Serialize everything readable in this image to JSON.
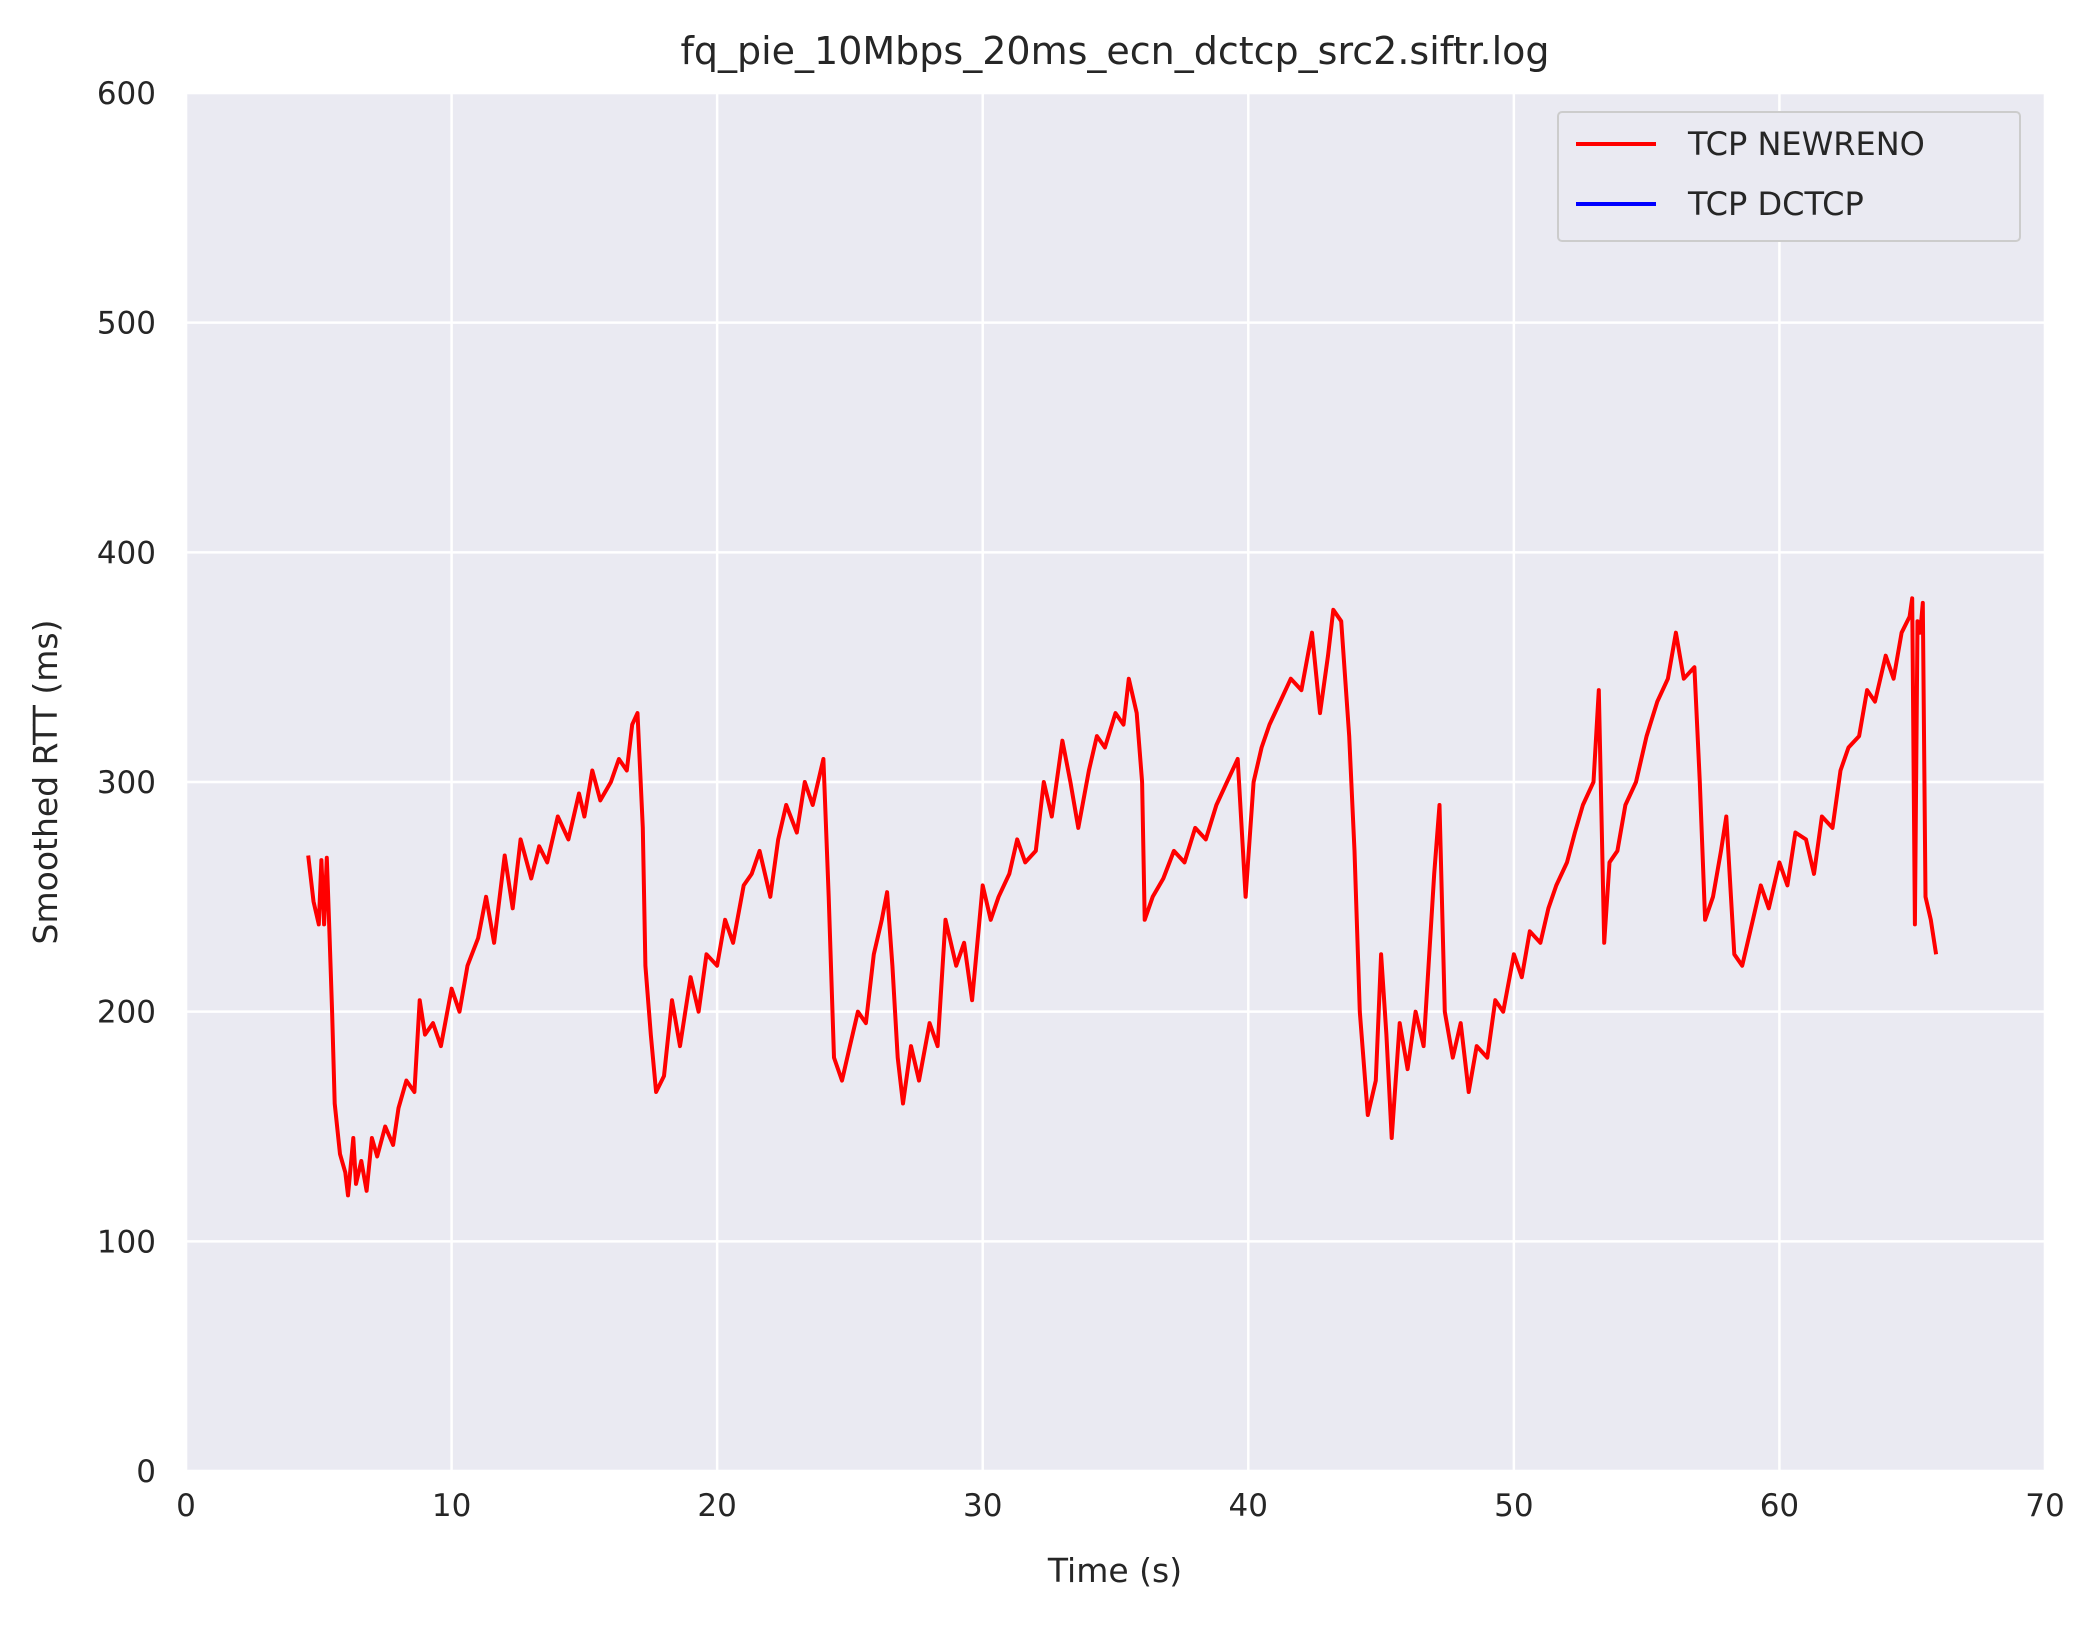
{
  "chart_data": {
    "type": "line",
    "title": "fq_pie_10Mbps_20ms_ecn_dctcp_src2.siftr.log",
    "xlabel": "Time (s)",
    "ylabel": "Smoothed RTT (ms)",
    "xlim": [
      0,
      70
    ],
    "ylim": [
      0,
      600
    ],
    "xticks": [
      0,
      10,
      20,
      30,
      40,
      50,
      60,
      70
    ],
    "yticks": [
      0,
      100,
      200,
      300,
      400,
      500,
      600
    ],
    "xtick_labels": [
      "0",
      "10",
      "20",
      "30",
      "40",
      "50",
      "60",
      "70"
    ],
    "ytick_labels": [
      "0",
      "100",
      "200",
      "300",
      "400",
      "500",
      "600"
    ],
    "grid": true,
    "legend_position": "top-right",
    "series": [
      {
        "name": "TCP NEWRENO",
        "color": "#ff0000",
        "points": [
          [
            4.6,
            268
          ],
          [
            4.8,
            248
          ],
          [
            5.0,
            238
          ],
          [
            5.1,
            266
          ],
          [
            5.2,
            238
          ],
          [
            5.3,
            267
          ],
          [
            5.4,
            235
          ],
          [
            5.5,
            200
          ],
          [
            5.6,
            160
          ],
          [
            5.8,
            138
          ],
          [
            6.0,
            130
          ],
          [
            6.1,
            120
          ],
          [
            6.3,
            145
          ],
          [
            6.4,
            125
          ],
          [
            6.6,
            135
          ],
          [
            6.8,
            122
          ],
          [
            7.0,
            145
          ],
          [
            7.2,
            137
          ],
          [
            7.5,
            150
          ],
          [
            7.8,
            142
          ],
          [
            8.0,
            158
          ],
          [
            8.3,
            170
          ],
          [
            8.6,
            165
          ],
          [
            8.8,
            205
          ],
          [
            9.0,
            190
          ],
          [
            9.3,
            195
          ],
          [
            9.6,
            185
          ],
          [
            10.0,
            210
          ],
          [
            10.3,
            200
          ],
          [
            10.6,
            220
          ],
          [
            11.0,
            232
          ],
          [
            11.3,
            250
          ],
          [
            11.6,
            230
          ],
          [
            12.0,
            268
          ],
          [
            12.3,
            245
          ],
          [
            12.6,
            275
          ],
          [
            13.0,
            258
          ],
          [
            13.3,
            272
          ],
          [
            13.6,
            265
          ],
          [
            14.0,
            285
          ],
          [
            14.4,
            275
          ],
          [
            14.8,
            295
          ],
          [
            15.0,
            285
          ],
          [
            15.3,
            305
          ],
          [
            15.6,
            292
          ],
          [
            16.0,
            300
          ],
          [
            16.3,
            310
          ],
          [
            16.6,
            305
          ],
          [
            16.8,
            325
          ],
          [
            17.0,
            330
          ],
          [
            17.2,
            280
          ],
          [
            17.3,
            220
          ],
          [
            17.5,
            190
          ],
          [
            17.7,
            165
          ],
          [
            18.0,
            172
          ],
          [
            18.3,
            205
          ],
          [
            18.6,
            185
          ],
          [
            19.0,
            215
          ],
          [
            19.3,
            200
          ],
          [
            19.6,
            225
          ],
          [
            20.0,
            220
          ],
          [
            20.3,
            240
          ],
          [
            20.6,
            230
          ],
          [
            21.0,
            255
          ],
          [
            21.3,
            260
          ],
          [
            21.6,
            270
          ],
          [
            22.0,
            250
          ],
          [
            22.3,
            275
          ],
          [
            22.6,
            290
          ],
          [
            23.0,
            278
          ],
          [
            23.3,
            300
          ],
          [
            23.6,
            290
          ],
          [
            24.0,
            310
          ],
          [
            24.2,
            250
          ],
          [
            24.4,
            180
          ],
          [
            24.7,
            170
          ],
          [
            25.0,
            185
          ],
          [
            25.3,
            200
          ],
          [
            25.6,
            195
          ],
          [
            25.9,
            225
          ],
          [
            26.2,
            240
          ],
          [
            26.4,
            252
          ],
          [
            26.6,
            220
          ],
          [
            26.8,
            180
          ],
          [
            27.0,
            160
          ],
          [
            27.3,
            185
          ],
          [
            27.6,
            170
          ],
          [
            28.0,
            195
          ],
          [
            28.3,
            185
          ],
          [
            28.6,
            240
          ],
          [
            29.0,
            220
          ],
          [
            29.3,
            230
          ],
          [
            29.6,
            205
          ],
          [
            30.0,
            255
          ],
          [
            30.3,
            240
          ],
          [
            30.6,
            250
          ],
          [
            31.0,
            260
          ],
          [
            31.3,
            275
          ],
          [
            31.6,
            265
          ],
          [
            32.0,
            270
          ],
          [
            32.3,
            300
          ],
          [
            32.6,
            285
          ],
          [
            33.0,
            318
          ],
          [
            33.3,
            300
          ],
          [
            33.6,
            280
          ],
          [
            34.0,
            305
          ],
          [
            34.3,
            320
          ],
          [
            34.6,
            315
          ],
          [
            35.0,
            330
          ],
          [
            35.3,
            325
          ],
          [
            35.5,
            345
          ],
          [
            35.8,
            330
          ],
          [
            36.0,
            300
          ],
          [
            36.1,
            240
          ],
          [
            36.4,
            250
          ],
          [
            36.8,
            258
          ],
          [
            37.2,
            270
          ],
          [
            37.6,
            265
          ],
          [
            38.0,
            280
          ],
          [
            38.4,
            275
          ],
          [
            38.8,
            290
          ],
          [
            39.2,
            300
          ],
          [
            39.6,
            310
          ],
          [
            39.9,
            250
          ],
          [
            40.2,
            300
          ],
          [
            40.5,
            315
          ],
          [
            40.8,
            325
          ],
          [
            41.2,
            335
          ],
          [
            41.6,
            345
          ],
          [
            42.0,
            340
          ],
          [
            42.4,
            365
          ],
          [
            42.7,
            330
          ],
          [
            43.0,
            355
          ],
          [
            43.2,
            375
          ],
          [
            43.5,
            370
          ],
          [
            43.8,
            320
          ],
          [
            44.0,
            270
          ],
          [
            44.2,
            200
          ],
          [
            44.5,
            155
          ],
          [
            44.8,
            170
          ],
          [
            45.0,
            225
          ],
          [
            45.2,
            190
          ],
          [
            45.4,
            145
          ],
          [
            45.7,
            195
          ],
          [
            46.0,
            175
          ],
          [
            46.3,
            200
          ],
          [
            46.6,
            185
          ],
          [
            47.0,
            260
          ],
          [
            47.2,
            290
          ],
          [
            47.4,
            200
          ],
          [
            47.7,
            180
          ],
          [
            48.0,
            195
          ],
          [
            48.3,
            165
          ],
          [
            48.6,
            185
          ],
          [
            49.0,
            180
          ],
          [
            49.3,
            205
          ],
          [
            49.6,
            200
          ],
          [
            50.0,
            225
          ],
          [
            50.3,
            215
          ],
          [
            50.6,
            235
          ],
          [
            51.0,
            230
          ],
          [
            51.3,
            245
          ],
          [
            51.6,
            255
          ],
          [
            52.0,
            265
          ],
          [
            52.3,
            278
          ],
          [
            52.6,
            290
          ],
          [
            53.0,
            300
          ],
          [
            53.2,
            340
          ],
          [
            53.4,
            230
          ],
          [
            53.6,
            265
          ],
          [
            53.9,
            270
          ],
          [
            54.2,
            290
          ],
          [
            54.6,
            300
          ],
          [
            55.0,
            320
          ],
          [
            55.4,
            335
          ],
          [
            55.8,
            345
          ],
          [
            56.1,
            365
          ],
          [
            56.4,
            345
          ],
          [
            56.8,
            350
          ],
          [
            57.0,
            300
          ],
          [
            57.2,
            240
          ],
          [
            57.5,
            250
          ],
          [
            57.8,
            270
          ],
          [
            58.0,
            285
          ],
          [
            58.3,
            225
          ],
          [
            58.6,
            220
          ],
          [
            59.0,
            240
          ],
          [
            59.3,
            255
          ],
          [
            59.6,
            245
          ],
          [
            60.0,
            265
          ],
          [
            60.3,
            255
          ],
          [
            60.6,
            278
          ],
          [
            61.0,
            275
          ],
          [
            61.3,
            260
          ],
          [
            61.6,
            285
          ],
          [
            62.0,
            280
          ],
          [
            62.3,
            305
          ],
          [
            62.6,
            315
          ],
          [
            63.0,
            320
          ],
          [
            63.3,
            340
          ],
          [
            63.6,
            335
          ],
          [
            64.0,
            355
          ],
          [
            64.3,
            345
          ],
          [
            64.6,
            365
          ],
          [
            64.9,
            372
          ],
          [
            65.0,
            380
          ],
          [
            65.1,
            238
          ],
          [
            65.2,
            370
          ],
          [
            65.3,
            365
          ],
          [
            65.4,
            378
          ],
          [
            65.5,
            250
          ],
          [
            65.7,
            240
          ],
          [
            65.9,
            225
          ]
        ]
      },
      {
        "name": "TCP DCTCP",
        "color": "#0000ff",
        "points": []
      }
    ]
  }
}
